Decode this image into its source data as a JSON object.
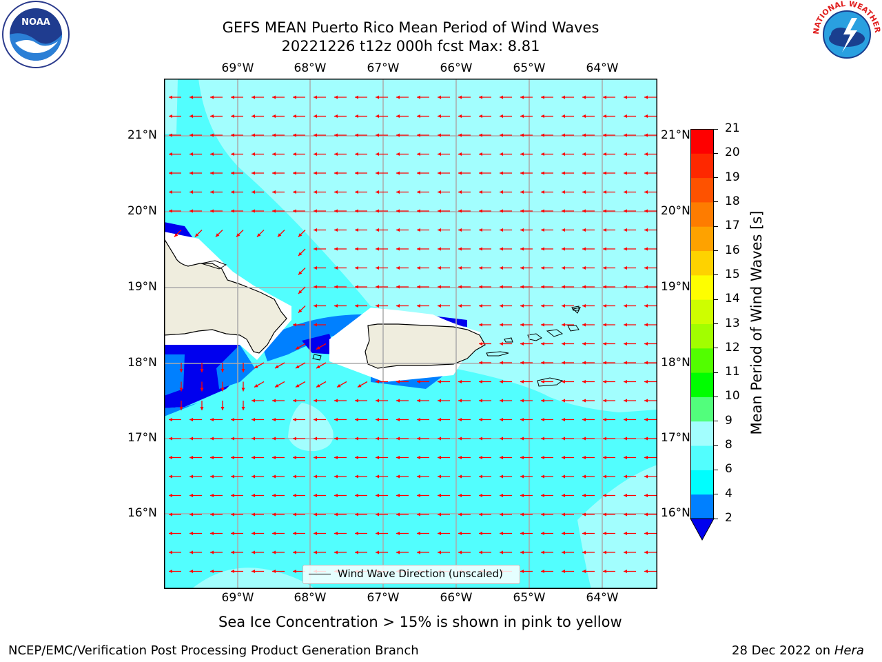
{
  "header": {
    "title_line1": "GEFS MEAN Puerto Rico Mean Period of Wind Waves",
    "title_line2": "20221226 t12z 000h fcst   Max: 8.81"
  },
  "logos": {
    "left": "noara-logo",
    "right": "nws-logo",
    "noaa_text": "NOAA",
    "nws_text": "NATIONAL WEATHER SERVICE"
  },
  "map": {
    "lon_labels": [
      "69°W",
      "68°W",
      "67°W",
      "66°W",
      "65°W",
      "64°W"
    ],
    "lat_labels": [
      "21°N",
      "20°N",
      "19°N",
      "18°N",
      "17°N",
      "16°N"
    ],
    "legend": "Wind Wave Direction (unscaled)",
    "colors": {
      "ocean_light": "#a2fefe",
      "ocean_mid": "#52fefe",
      "ocean_deep": "#0080ff",
      "ocean_darkest": "#0000ee",
      "land": "#efedde",
      "arrow": "#ff0000",
      "grid": "#aaaaaa"
    }
  },
  "colorbar": {
    "title": "Mean Period of Wind Waves [s]",
    "tick_labels": [
      "21",
      "20",
      "19",
      "18",
      "17",
      "16",
      "15",
      "14",
      "13",
      "12",
      "11",
      "10",
      "9",
      "8",
      "6",
      "4",
      "2"
    ],
    "colors": [
      "#0000ee",
      "#0080ff",
      "#00fefe",
      "#52fefe",
      "#a2fefe",
      "#52fe7c",
      "#00fe00",
      "#52fe00",
      "#a2fe00",
      "#cefe00",
      "#fefe00",
      "#fed200",
      "#fea200",
      "#fe7c00",
      "#fe5200",
      "#fe2800",
      "#fe0000"
    ]
  },
  "footer": {
    "note": "Sea Ice Concentration > 15% is shown in pink to yellow",
    "branch": "NCEP/EMC/Verification Post Processing Product Generation Branch",
    "date": "28 Dec 2022 on ",
    "machine": "Hera"
  }
}
